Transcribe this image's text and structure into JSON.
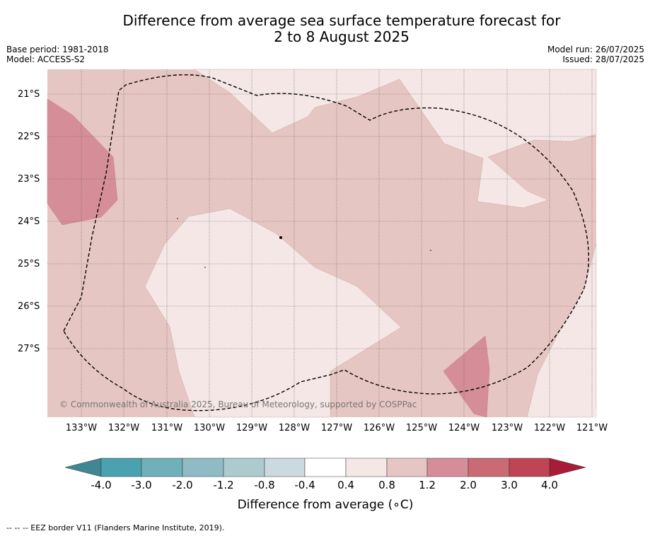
{
  "title": {
    "line1": "Difference from average sea surface temperature forecast for",
    "line2": "2 to 8 August 2025"
  },
  "meta_left": {
    "base_period": "Base period: 1981-2018",
    "model": "Model: ACCESS-S2"
  },
  "meta_right": {
    "model_run": "Model run: 26/07/2025",
    "issued": "Issued: 28/07/2025"
  },
  "map": {
    "lat_labels": [
      "21°S",
      "22°S",
      "23°S",
      "24°S",
      "25°S",
      "26°S",
      "27°S"
    ],
    "lon_labels": [
      "133°W",
      "132°W",
      "131°W",
      "130°W",
      "129°W",
      "128°W",
      "127°W",
      "126°W",
      "125°W",
      "124°W",
      "123°W",
      "122°W",
      "121°W"
    ],
    "copyright": "© Commonwealth of Australia 2025, Bureau of Meteorology, supported by COSPPac",
    "colors": {
      "band_0_4_0_8": "#f4e7e6",
      "band_0_8_1_2": "#e6c6c2",
      "band_1_2_2_0": "#d58e98",
      "eez_line": "#000000"
    }
  },
  "colorbar": {
    "ticks": [
      "-4.0",
      "-3.0",
      "-2.0",
      "-1.2",
      "-0.8",
      "-0.4",
      "0.4",
      "0.8",
      "1.2",
      "2.0",
      "3.0",
      "4.0"
    ],
    "colors": [
      "#3f8793",
      "#4ba1b0",
      "#6fb0bb",
      "#8fbbc4",
      "#adcbcf",
      "#cbdadf",
      "#ffffff",
      "#f4e7e6",
      "#e6c6c2",
      "#d58e98",
      "#c96a74",
      "#bf4455",
      "#a81c38"
    ],
    "title": "Difference from average (",
    "unit": "∘C",
    "title_close": ")"
  },
  "footnote": "--  --  -- EEZ border V11 (Flanders Marine Institute, 2019)."
}
